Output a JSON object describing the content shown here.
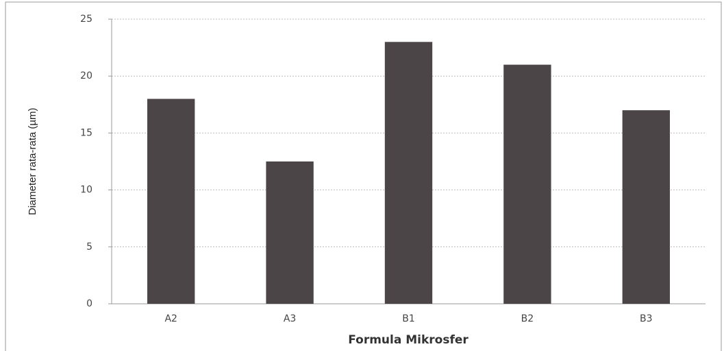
{
  "chart_data": {
    "type": "bar",
    "x_label": "Formula Mikrosfer",
    "y_label": "Diameter rata-rata (µm)",
    "categories": [
      "A2",
      "A3",
      "B1",
      "B2",
      "B3"
    ],
    "values": [
      18,
      12.5,
      23,
      21,
      17
    ],
    "color": "#4b4547",
    "ylim": [
      0,
      25
    ],
    "yticks": [
      0,
      5,
      10,
      15,
      20,
      25
    ],
    "grid": true
  }
}
